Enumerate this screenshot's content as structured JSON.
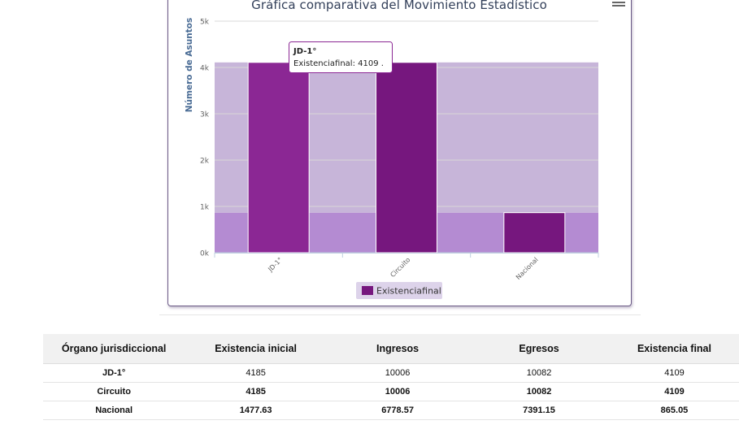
{
  "chart_data": {
    "type": "bar",
    "title": "Gráfica comparativa del Movimiento Estadístico",
    "ylabel": "Número de Asuntos",
    "xlabel": "",
    "categories": [
      "JD-1°",
      "Circuito",
      "Nacional"
    ],
    "series": [
      {
        "name": "Existenciafinal",
        "values": [
          4109,
          4109,
          865.05
        ],
        "color": "#76177e"
      }
    ],
    "ylim": [
      0,
      5000
    ],
    "yticks": [
      0,
      1000,
      2000,
      3000,
      4000,
      5000
    ],
    "ytick_labels": [
      "0k",
      "1k",
      "2k",
      "3k",
      "4k",
      "5k"
    ],
    "grid": true,
    "legend": "bottom",
    "plot_bands": [
      {
        "from": 0,
        "to": 865.05,
        "color": "#b48bd2"
      },
      {
        "from": 865.05,
        "to": 4109,
        "color": "#c7b5d9"
      }
    ],
    "tooltip": {
      "header": "JD-1°",
      "label": "Existenciafinal:",
      "value": "4109 ."
    }
  },
  "table": {
    "headers": [
      "Órgano jurisdiccional",
      "Existencia inicial",
      "Ingresos",
      "Egresos",
      "Existencia final"
    ],
    "rows": [
      [
        "JD-1°",
        "4185",
        "10006",
        "10082",
        "4109"
      ],
      [
        "Circuito",
        "4185",
        "10006",
        "10082",
        "4109"
      ],
      [
        "Nacional",
        "1477.63",
        "6778.57",
        "7391.15",
        "865.05"
      ]
    ]
  }
}
